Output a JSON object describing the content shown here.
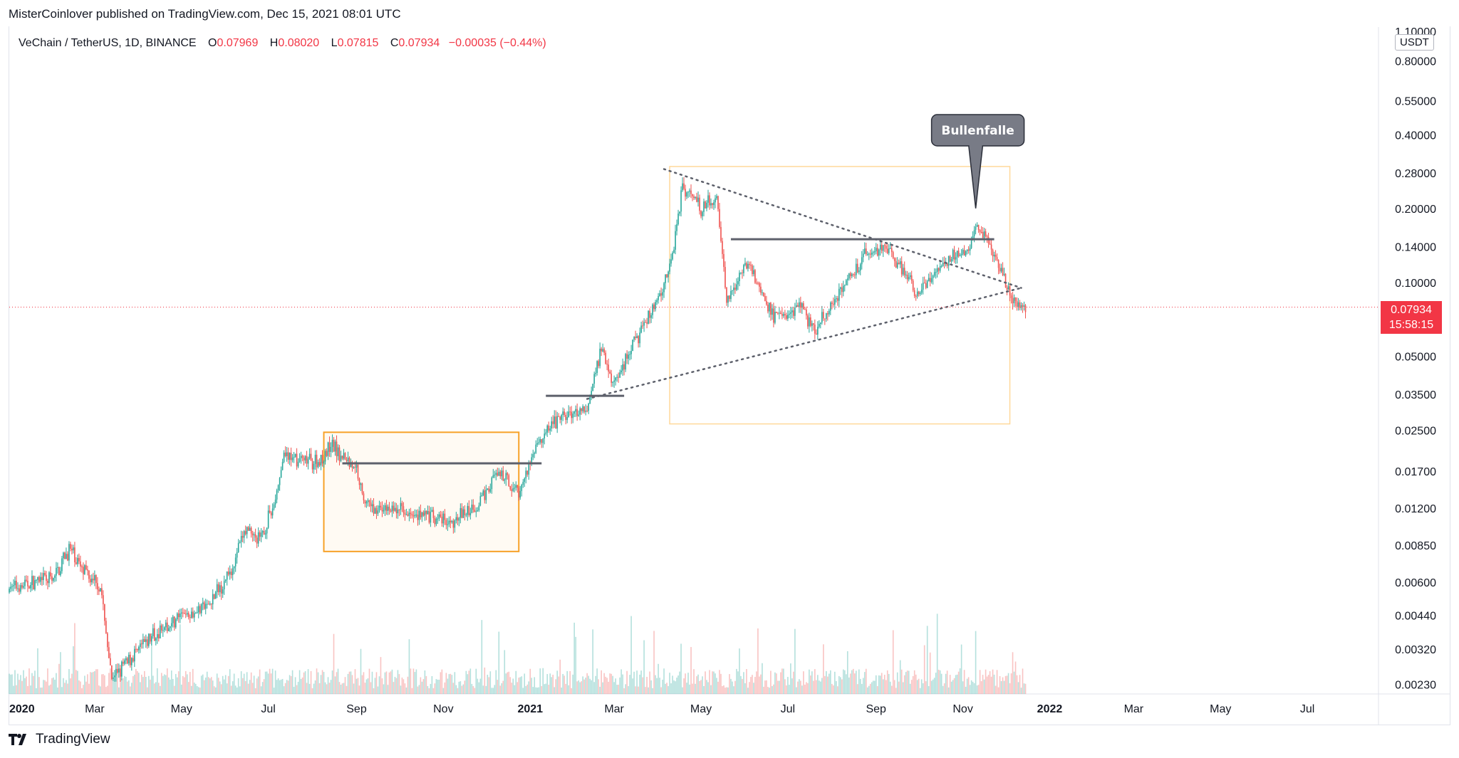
{
  "header": {
    "byline": "MisterCoinlover published on TradingView.com, Dec 15, 2021 08:01 UTC"
  },
  "legend": {
    "symbol": "VeChain / TetherUS, 1D, BINANCE",
    "open_label": "O",
    "open": "0.07969",
    "high_label": "H",
    "high": "0.08020",
    "low_label": "L",
    "low": "0.07815",
    "close_label": "C",
    "close": "0.07934",
    "change": "−0.00035 (−0.44%)"
  },
  "price_axis": {
    "unit": "USDT",
    "top_label": "1.10000",
    "current_price": "0.07934",
    "countdown": "15:58:15"
  },
  "brand": {
    "name": "TradingView"
  },
  "colors": {
    "up": "#26a69a",
    "down": "#ef5350",
    "accent": "#f23645",
    "box_orange": "#f7a127",
    "box_light": "#ffd89a",
    "resistance": "#5d606b"
  },
  "chart_data": {
    "type": "candlestick",
    "y_scale": "log",
    "ylim": [
      0.0021,
      1.1
    ],
    "y_ticks": [
      {
        "value": 0.8,
        "label": "0.80000"
      },
      {
        "value": 0.55,
        "label": "0.55000"
      },
      {
        "value": 0.4,
        "label": "0.40000"
      },
      {
        "value": 0.28,
        "label": "0.28000"
      },
      {
        "value": 0.2,
        "label": "0.20000"
      },
      {
        "value": 0.14,
        "label": "0.14000"
      },
      {
        "value": 0.1,
        "label": "0.10000"
      },
      {
        "value": 0.05,
        "label": "0.05000"
      },
      {
        "value": 0.035,
        "label": "0.03500"
      },
      {
        "value": 0.025,
        "label": "0.02500"
      },
      {
        "value": 0.017,
        "label": "0.01700"
      },
      {
        "value": 0.012,
        "label": "0.01200"
      },
      {
        "value": 0.0085,
        "label": "0.00850"
      },
      {
        "value": 0.006,
        "label": "0.00600"
      },
      {
        "value": 0.0044,
        "label": "0.00440"
      },
      {
        "value": 0.0032,
        "label": "0.00320"
      },
      {
        "value": 0.0023,
        "label": "0.00230"
      }
    ],
    "x_range": [
      "2020-01-01",
      "2022-08-20"
    ],
    "x_ticks": [
      {
        "date": "2020-01-01",
        "label": "2020",
        "year": true
      },
      {
        "date": "2020-03-01",
        "label": "Mar"
      },
      {
        "date": "2020-05-01",
        "label": "May"
      },
      {
        "date": "2020-07-01",
        "label": "Jul"
      },
      {
        "date": "2020-09-01",
        "label": "Sep"
      },
      {
        "date": "2020-11-01",
        "label": "Nov"
      },
      {
        "date": "2021-01-01",
        "label": "2021",
        "year": true
      },
      {
        "date": "2021-03-01",
        "label": "Mar"
      },
      {
        "date": "2021-05-01",
        "label": "May"
      },
      {
        "date": "2021-07-01",
        "label": "Jul"
      },
      {
        "date": "2021-09-01",
        "label": "Sep"
      },
      {
        "date": "2021-11-01",
        "label": "Nov"
      },
      {
        "date": "2022-01-01",
        "label": "2022",
        "year": true
      },
      {
        "date": "2022-03-01",
        "label": "Mar"
      },
      {
        "date": "2022-05-01",
        "label": "May"
      },
      {
        "date": "2022-07-01",
        "label": "Jul"
      }
    ],
    "price_path": [
      [
        "2020-01-01",
        0.0057
      ],
      [
        "2020-02-01",
        0.0062
      ],
      [
        "2020-02-12",
        0.0082
      ],
      [
        "2020-02-25",
        0.0064
      ],
      [
        "2020-03-05",
        0.0058
      ],
      [
        "2020-03-13",
        0.0024
      ],
      [
        "2020-03-25",
        0.0029
      ],
      [
        "2020-04-10",
        0.0036
      ],
      [
        "2020-05-01",
        0.0044
      ],
      [
        "2020-05-20",
        0.0048
      ],
      [
        "2020-06-05",
        0.0068
      ],
      [
        "2020-06-15",
        0.0098
      ],
      [
        "2020-06-25",
        0.0088
      ],
      [
        "2020-07-05",
        0.0125
      ],
      [
        "2020-07-12",
        0.0195
      ],
      [
        "2020-08-05",
        0.0185
      ],
      [
        "2020-08-15",
        0.0215
      ],
      [
        "2020-09-01",
        0.0175
      ],
      [
        "2020-09-08",
        0.0122
      ],
      [
        "2020-10-15",
        0.0115
      ],
      [
        "2020-11-05",
        0.0104
      ],
      [
        "2020-11-25",
        0.0125
      ],
      [
        "2020-12-08",
        0.0165
      ],
      [
        "2020-12-25",
        0.0142
      ],
      [
        "2021-01-05",
        0.0215
      ],
      [
        "2021-01-20",
        0.0275
      ],
      [
        "2021-02-10",
        0.0305
      ],
      [
        "2021-02-20",
        0.0555
      ],
      [
        "2021-03-01",
        0.0385
      ],
      [
        "2021-03-20",
        0.0645
      ],
      [
        "2021-04-01",
        0.0865
      ],
      [
        "2021-04-10",
        0.1205
      ],
      [
        "2021-04-18",
        0.2505
      ],
      [
        "2021-05-01",
        0.2005
      ],
      [
        "2021-05-12",
        0.2255
      ],
      [
        "2021-05-19",
        0.0855
      ],
      [
        "2021-06-03",
        0.1205
      ],
      [
        "2021-06-22",
        0.0705
      ],
      [
        "2021-07-10",
        0.0805
      ],
      [
        "2021-07-20",
        0.0625
      ],
      [
        "2021-08-05",
        0.0905
      ],
      [
        "2021-08-25",
        0.1305
      ],
      [
        "2021-09-07",
        0.1405
      ],
      [
        "2021-09-20",
        0.1105
      ],
      [
        "2021-10-01",
        0.0905
      ],
      [
        "2021-10-20",
        0.1205
      ],
      [
        "2021-11-05",
        0.1405
      ],
      [
        "2021-11-10",
        0.1705
      ],
      [
        "2021-11-20",
        0.1405
      ],
      [
        "2021-12-05",
        0.0855
      ],
      [
        "2021-12-15",
        0.0793
      ]
    ],
    "volume_scale_ticks": [],
    "annotations": [
      {
        "type": "callout",
        "text": "Bullenfalle",
        "date": "2021-11-10",
        "price": 0.19
      },
      {
        "type": "box",
        "style": "accumulation",
        "from": "2020-08-09",
        "to": "2020-12-24",
        "low": 0.008,
        "high": 0.0245
      },
      {
        "type": "box",
        "style": "range",
        "from": "2021-04-09",
        "to": "2021-12-04",
        "low": 0.0265,
        "high": 0.297
      },
      {
        "type": "hline",
        "from": "2020-08-22",
        "to": "2021-01-09",
        "price": 0.0183
      },
      {
        "type": "hline",
        "from": "2021-01-12",
        "to": "2021-03-08",
        "price": 0.0345
      },
      {
        "type": "hline",
        "from": "2021-05-22",
        "to": "2021-11-23",
        "price": 0.15
      },
      {
        "type": "trendline",
        "from": [
          "2021-04-05",
          0.29
        ],
        "to": [
          "2021-12-12",
          0.095
        ]
      },
      {
        "type": "trendline",
        "from": [
          "2021-02-10",
          0.0335
        ],
        "to": [
          "2021-12-12",
          0.095
        ]
      }
    ]
  }
}
